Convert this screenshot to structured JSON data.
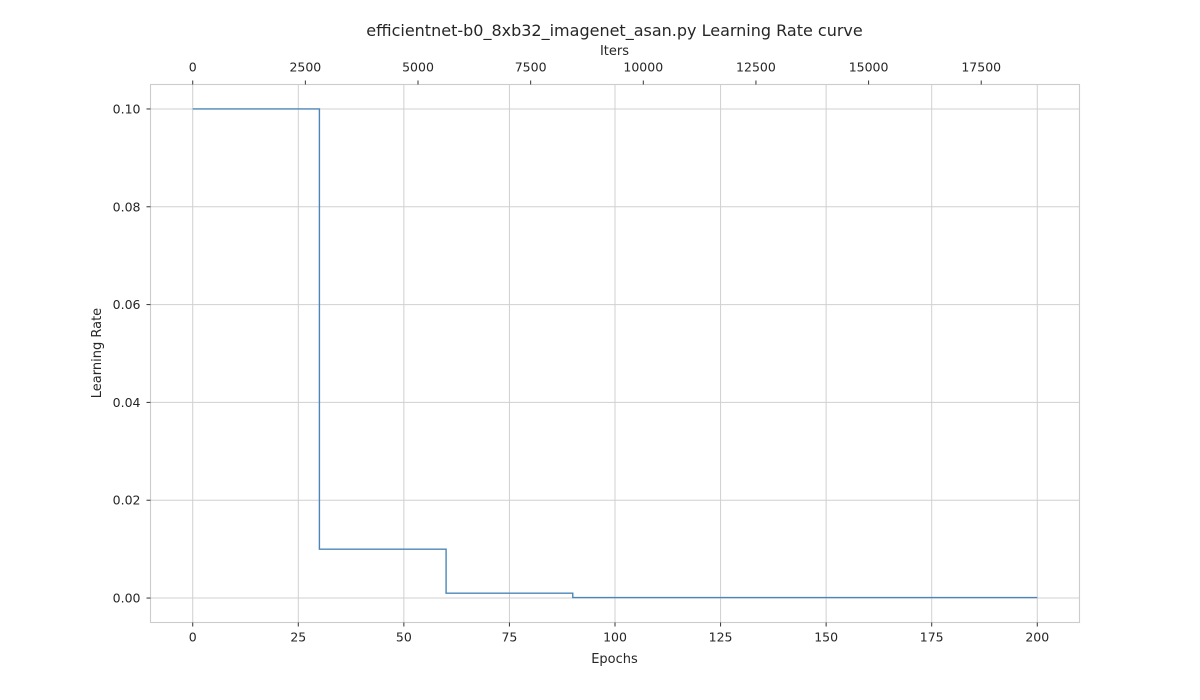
{
  "chart_data": {
    "type": "line",
    "title": "efficientnet-b0_8xb32_imagenet_asan.py Learning Rate curve",
    "xlabel": "Epochs",
    "ylabel": "Learning Rate",
    "secondary_xlabel": "Iters",
    "xlim": [
      -10,
      210
    ],
    "ylim": [
      -0.005,
      0.105
    ],
    "secondary_xlim": [
      -937,
      19681
    ],
    "x_ticks": [
      "0",
      "25",
      "50",
      "75",
      "100",
      "125",
      "150",
      "175",
      "200"
    ],
    "y_ticks": [
      "0.00",
      "0.02",
      "0.04",
      "0.06",
      "0.08",
      "0.10"
    ],
    "secondary_x_ticks": [
      "0",
      "2500",
      "5000",
      "7500",
      "10000",
      "12500",
      "15000",
      "17500"
    ],
    "grid": true,
    "line_color": "#4C86B8",
    "series": [
      {
        "x": [
          0,
          30,
          30,
          60,
          60,
          90,
          90,
          200
        ],
        "y": [
          0.1,
          0.1,
          0.01,
          0.01,
          0.001,
          0.001,
          0.0001,
          0.0001
        ]
      }
    ]
  }
}
